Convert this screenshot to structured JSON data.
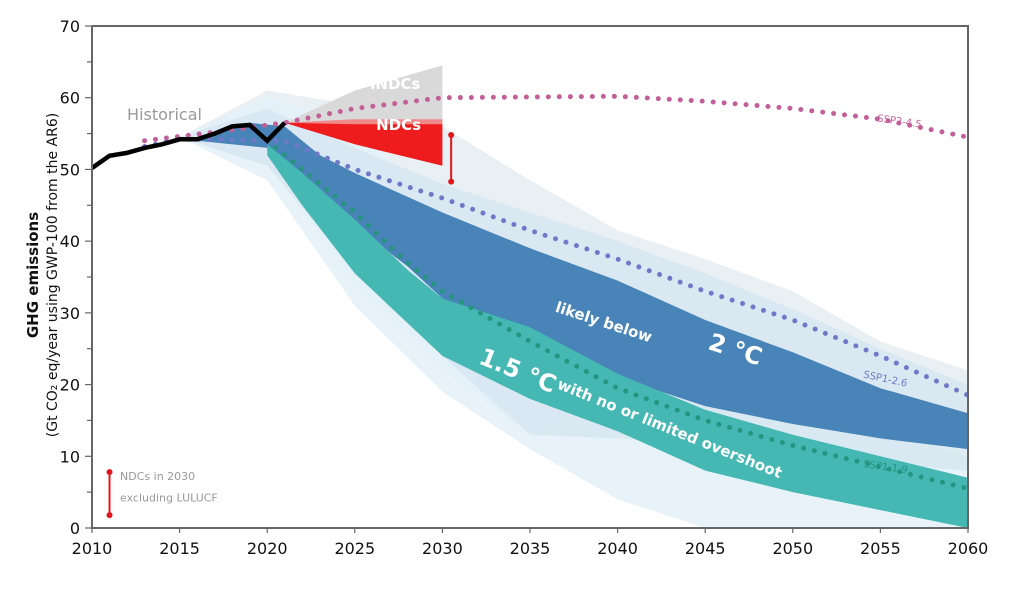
{
  "chart_data": {
    "type": "area",
    "title": "",
    "xlabel": "",
    "ylabel": "GHG emissions",
    "ylabel_sub": "(Gt CO₂ eq/year using GWP-100 from the AR6)",
    "xlim": [
      2010,
      2060
    ],
    "ylim": [
      0,
      70
    ],
    "grid": false,
    "x_ticks": [
      2010,
      2015,
      2020,
      2025,
      2030,
      2035,
      2040,
      2045,
      2050,
      2055,
      2060
    ],
    "y_ticks": [
      0,
      10,
      20,
      30,
      40,
      50,
      60,
      70
    ],
    "colors": {
      "historical": "#000000",
      "range_outer_2c": "#e9f0f4",
      "range_outer_15c": "#e3f1f8",
      "range_inner_2c": "#d6e6f0",
      "band_2c": "#4884b8",
      "band_15c": "#45b8b4",
      "indcs": "#d9d9d9",
      "ndcs": "#ee1c1c",
      "ndcs_light": "#f08a8a",
      "ssp245": "#c35f98",
      "ssp126": "#6f79c9",
      "ssp119": "#27947f",
      "ndc_marker": "#e3161c",
      "label_gray": "#9a9a9a"
    },
    "series": [
      {
        "name": "Historical",
        "kind": "line",
        "points": [
          [
            2010,
            50.2
          ],
          [
            2011,
            51.9
          ],
          [
            2012,
            52.3
          ],
          [
            2013,
            53.0
          ],
          [
            2014,
            53.5
          ],
          [
            2015,
            54.2
          ],
          [
            2016,
            54.2
          ],
          [
            2017,
            55.0
          ],
          [
            2018,
            56.0
          ],
          [
            2019,
            56.2
          ],
          [
            2020,
            54.0
          ],
          [
            2021,
            56.5
          ]
        ]
      },
      {
        "name": "SSP2-4.5",
        "kind": "dotted",
        "points": [
          [
            2013,
            54.0
          ],
          [
            2015,
            54.6
          ],
          [
            2018,
            55.5
          ],
          [
            2020,
            56.2
          ],
          [
            2021,
            56.5
          ],
          [
            2025,
            58.5
          ],
          [
            2030,
            60.0
          ],
          [
            2035,
            60.1
          ],
          [
            2040,
            60.2
          ],
          [
            2045,
            59.5
          ],
          [
            2050,
            58.5
          ],
          [
            2055,
            57.0
          ],
          [
            2060,
            54.5
          ]
        ]
      },
      {
        "name": "SSP1-2.6",
        "kind": "dotted",
        "points": [
          [
            2013,
            53.2
          ],
          [
            2015,
            54.2
          ],
          [
            2017,
            54.2
          ],
          [
            2020,
            54.0
          ],
          [
            2021,
            54.0
          ],
          [
            2023,
            52.0
          ],
          [
            2025,
            50.0
          ],
          [
            2030,
            46.0
          ],
          [
            2035,
            41.5
          ],
          [
            2040,
            37.5
          ],
          [
            2045,
            33.0
          ],
          [
            2050,
            29.0
          ],
          [
            2055,
            24.0
          ],
          [
            2060,
            18.5
          ]
        ]
      },
      {
        "name": "SSP1-1.9",
        "kind": "dotted",
        "points": [
          [
            2020,
            54.0
          ],
          [
            2022,
            50.0
          ],
          [
            2025,
            44.0
          ],
          [
            2028,
            37.0
          ],
          [
            2030,
            33.0
          ],
          [
            2035,
            26.0
          ],
          [
            2040,
            19.5
          ],
          [
            2045,
            15.0
          ],
          [
            2050,
            11.5
          ],
          [
            2055,
            8.5
          ],
          [
            2060,
            5.5
          ]
        ]
      }
    ],
    "bands": [
      {
        "name": "2C full range",
        "upper": [
          [
            2015,
            54.5
          ],
          [
            2020,
            61.0
          ],
          [
            2025,
            59.0
          ],
          [
            2030,
            56.0
          ],
          [
            2035,
            48.5
          ],
          [
            2040,
            41.5
          ],
          [
            2045,
            37.5
          ],
          [
            2050,
            33.0
          ],
          [
            2055,
            26.0
          ],
          [
            2060,
            22.0
          ]
        ],
        "lower": [
          [
            2060,
            11.0
          ],
          [
            2055,
            13.0
          ],
          [
            2050,
            14.5
          ],
          [
            2045,
            16.5
          ],
          [
            2040,
            18.5
          ],
          [
            2035,
            13.0
          ],
          [
            2030,
            22.0
          ],
          [
            2025,
            34.0
          ],
          [
            2020,
            51.0
          ],
          [
            2015,
            54.5
          ]
        ]
      },
      {
        "name": "1.5C full range",
        "upper": [
          [
            2015,
            54.5
          ],
          [
            2020,
            60.0
          ],
          [
            2025,
            56.0
          ],
          [
            2030,
            44.0
          ],
          [
            2035,
            35.0
          ],
          [
            2040,
            29.0
          ],
          [
            2045,
            22.5
          ],
          [
            2050,
            18.5
          ],
          [
            2055,
            14.0
          ],
          [
            2060,
            10.0
          ]
        ],
        "lower": [
          [
            2060,
            0.0
          ],
          [
            2055,
            0.0
          ],
          [
            2050,
            0.0
          ],
          [
            2045,
            0.0
          ],
          [
            2040,
            4.0
          ],
          [
            2035,
            11.0
          ],
          [
            2030,
            19.0
          ],
          [
            2025,
            31.0
          ],
          [
            2020,
            48.5
          ],
          [
            2015,
            54.5
          ]
        ]
      },
      {
        "name": "2C interquartile-light",
        "upper": [
          [
            2015,
            54.5
          ],
          [
            2020,
            58.5
          ],
          [
            2025,
            53.0
          ],
          [
            2030,
            48.0
          ],
          [
            2035,
            44.0
          ],
          [
            2040,
            40.0
          ],
          [
            2045,
            35.5
          ],
          [
            2050,
            30.5
          ],
          [
            2055,
            25.0
          ],
          [
            2060,
            20.0
          ]
        ],
        "lower": [
          [
            2060,
            8.0
          ],
          [
            2055,
            9.0
          ],
          [
            2050,
            10.0
          ],
          [
            2045,
            11.5
          ],
          [
            2040,
            12.5
          ],
          [
            2035,
            13.0
          ],
          [
            2030,
            24.0
          ],
          [
            2025,
            36.0
          ],
          [
            2020,
            50.5
          ],
          [
            2015,
            54.5
          ]
        ]
      },
      {
        "name": "likely below 2 °C",
        "upper": [
          [
            2016,
            54.5
          ],
          [
            2019,
            56.5
          ],
          [
            2021,
            56.0
          ],
          [
            2023,
            52.0
          ],
          [
            2025,
            49.5
          ],
          [
            2030,
            44.0
          ],
          [
            2035,
            39.0
          ],
          [
            2040,
            34.5
          ],
          [
            2045,
            29.0
          ],
          [
            2050,
            24.5
          ],
          [
            2055,
            19.5
          ],
          [
            2060,
            16.0
          ]
        ],
        "lower": [
          [
            2060,
            11.0
          ],
          [
            2055,
            12.5
          ],
          [
            2050,
            14.5
          ],
          [
            2045,
            17.0
          ],
          [
            2040,
            21.0
          ],
          [
            2035,
            25.0
          ],
          [
            2030,
            32.0
          ],
          [
            2028,
            36.5
          ],
          [
            2025,
            42.0
          ],
          [
            2022,
            48.0
          ],
          [
            2020,
            53.0
          ],
          [
            2016,
            54.0
          ]
        ]
      },
      {
        "name": "1.5 °C with no or limited overshoot",
        "upper": [
          [
            2020,
            53.5
          ],
          [
            2022,
            49.5
          ],
          [
            2025,
            43.0
          ],
          [
            2028,
            36.0
          ],
          [
            2030,
            32.0
          ],
          [
            2035,
            28.0
          ],
          [
            2040,
            21.5
          ],
          [
            2045,
            16.5
          ],
          [
            2050,
            13.0
          ],
          [
            2055,
            10.0
          ],
          [
            2060,
            7.0
          ]
        ],
        "lower": [
          [
            2060,
            0.0
          ],
          [
            2055,
            2.5
          ],
          [
            2050,
            5.0
          ],
          [
            2045,
            8.0
          ],
          [
            2040,
            13.5
          ],
          [
            2035,
            18.0
          ],
          [
            2030,
            24.0
          ],
          [
            2025,
            35.5
          ],
          [
            2022,
            45.0
          ],
          [
            2020,
            52.0
          ]
        ]
      },
      {
        "name": "INDCs",
        "upper": [
          [
            2021,
            56.5
          ],
          [
            2025,
            61.0
          ],
          [
            2030,
            64.5
          ]
        ],
        "lower": [
          [
            2030,
            56.5
          ],
          [
            2025,
            56.0
          ],
          [
            2021,
            56.5
          ]
        ]
      },
      {
        "name": "NDCs light",
        "upper": [
          [
            2021,
            56.5
          ],
          [
            2025,
            57.0
          ],
          [
            2030,
            57.0
          ]
        ],
        "lower": [
          [
            2030,
            56.0
          ],
          [
            2025,
            56.0
          ],
          [
            2021,
            56.5
          ]
        ]
      },
      {
        "name": "NDCs",
        "upper": [
          [
            2021,
            56.5
          ],
          [
            2025,
            56.3
          ],
          [
            2030,
            56.3
          ]
        ],
        "lower": [
          [
            2030,
            50.5
          ],
          [
            2025,
            53.5
          ],
          [
            2021,
            56.5
          ]
        ]
      }
    ],
    "markers": [
      {
        "name": "NDCs in 2030 excluding LULUCF",
        "x": 2030.5,
        "y_low": 48.3,
        "y_high": 54.8
      },
      {
        "name": "legend-marker",
        "x": 2011,
        "y_low": 1.8,
        "y_high": 7.8
      }
    ],
    "annotations": [
      {
        "text": "Historical",
        "x": 2012,
        "y": 56.9,
        "style": "gray"
      },
      {
        "text": "INDCs",
        "x": 2027.3,
        "y": 61.2,
        "style": "white-bold"
      },
      {
        "text": "NDCs",
        "x": 2027.5,
        "y": 55.5,
        "style": "white-bold"
      },
      {
        "text": "SSP2-4.5",
        "x": 2054.8,
        "y": 56.7,
        "style": "ssp245",
        "rotate": 8
      },
      {
        "text": "SSP1-2.6",
        "x": 2054.0,
        "y": 21.0,
        "style": "ssp126",
        "rotate": 12
      },
      {
        "text": "SSP1-1.9",
        "x": 2054.0,
        "y": 8.5,
        "style": "ssp119",
        "rotate": 8
      },
      {
        "text": "likely below",
        "x": 2036.4,
        "y": 30.2,
        "style": "band-label",
        "rotate": 18
      },
      {
        "text": "2 °C",
        "x": 2045.1,
        "y": 25.0,
        "style": "band-label-big",
        "rotate": 18
      },
      {
        "text": "1.5 °C",
        "x": 2032.0,
        "y": 23.0,
        "style": "band-label-big",
        "rotate": 22
      },
      {
        "text": "with no or limited overshoot",
        "x": 2036.5,
        "y": 19.5,
        "style": "band-label",
        "rotate": 22
      },
      {
        "text": "NDCs in 2030",
        "x": 2011.6,
        "y": 6.7,
        "style": "legend"
      },
      {
        "text": "excluding LULUCF",
        "x": 2011.6,
        "y": 3.7,
        "style": "legend"
      }
    ]
  }
}
